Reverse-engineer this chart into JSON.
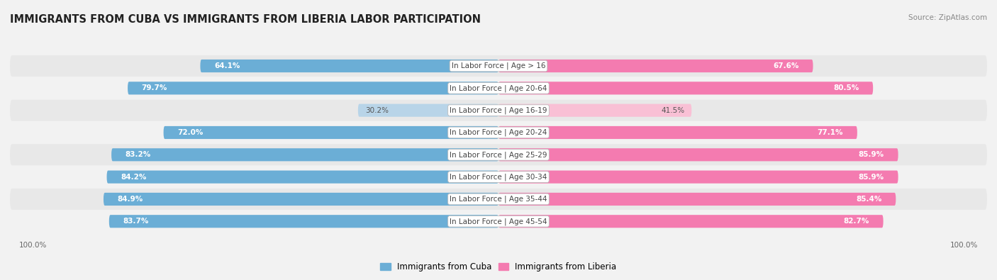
{
  "title": "IMMIGRANTS FROM CUBA VS IMMIGRANTS FROM LIBERIA LABOR PARTICIPATION",
  "source": "Source: ZipAtlas.com",
  "categories": [
    "In Labor Force | Age > 16",
    "In Labor Force | Age 20-64",
    "In Labor Force | Age 16-19",
    "In Labor Force | Age 20-24",
    "In Labor Force | Age 25-29",
    "In Labor Force | Age 30-34",
    "In Labor Force | Age 35-44",
    "In Labor Force | Age 45-54"
  ],
  "cuba_values": [
    64.1,
    79.7,
    30.2,
    72.0,
    83.2,
    84.2,
    84.9,
    83.7
  ],
  "liberia_values": [
    67.6,
    80.5,
    41.5,
    77.1,
    85.9,
    85.9,
    85.4,
    82.7
  ],
  "cuba_color": "#6BAED6",
  "liberia_color": "#F47BB0",
  "cuba_color_light": "#B8D4E8",
  "liberia_color_light": "#F9C0D5",
  "bar_height": 0.58,
  "background_color": "#f2f2f2",
  "row_bg_even": "#e8e8e8",
  "row_bg_odd": "#f2f2f2",
  "legend_cuba": "Immigrants from Cuba",
  "legend_liberia": "Immigrants from Liberia",
  "title_fontsize": 10.5,
  "label_fontsize": 7.5,
  "value_fontsize": 7.5,
  "axis_label_fontsize": 7.5,
  "max_val": 100.0,
  "xlim": 105
}
